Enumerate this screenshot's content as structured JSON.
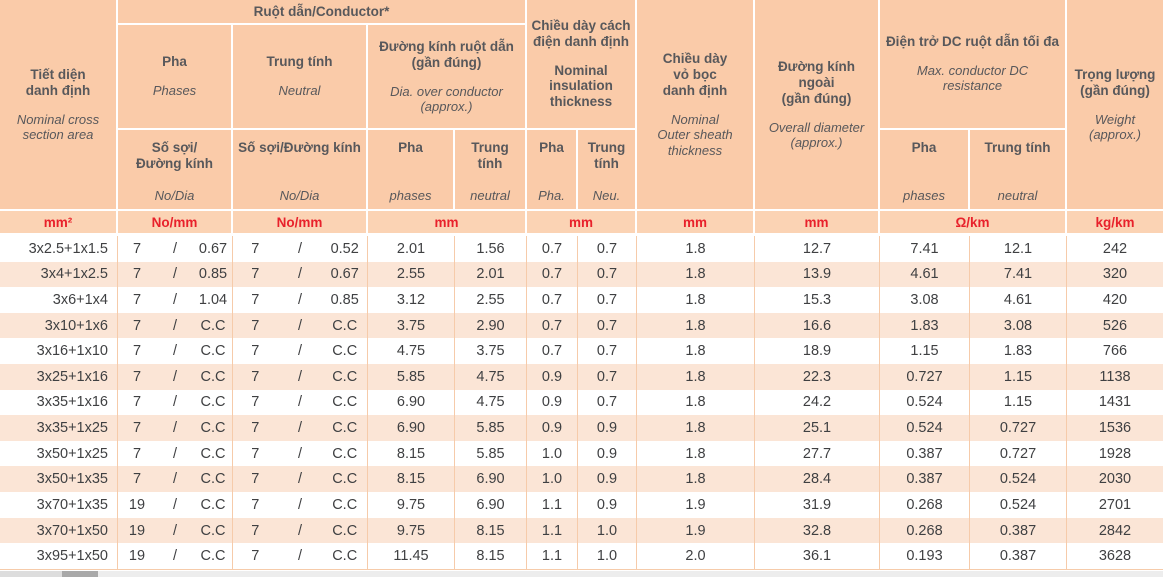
{
  "table": {
    "header": {
      "section": {
        "vi": "Tiết diện\ndanh định",
        "en": "Nominal cross\nsection area"
      },
      "conductor_group": {
        "vi": "Ruột dẫn/Conductor*"
      },
      "pha": {
        "vi": "Pha",
        "en": "Phases"
      },
      "neutral": {
        "vi": "Trung tính",
        "en": "Neutral"
      },
      "pha_nodia": {
        "vi": "Số sợi/\nĐường kính",
        "en": "No/Dia"
      },
      "neutral_nodia": {
        "vi": "Số sợi/Đường kính",
        "en": "No/Dia"
      },
      "dia_group": {
        "vi": "Đường kính ruột dẫn\n(gần đúng)",
        "en": "Dia. over conductor\n(approx.)"
      },
      "dia_pha": {
        "vi": "Pha",
        "en": "phases"
      },
      "dia_neutral": {
        "vi": "Trung\ntính",
        "en": "neutral"
      },
      "insulation": {
        "vi": "Chiều dày cách\nđiện danh định",
        "en": "Nominal\ninsulation\nthickness"
      },
      "ins_pha": {
        "vi": "Pha",
        "en": "Pha."
      },
      "ins_neutral": {
        "vi": "Trung\ntính",
        "en": "Neu."
      },
      "sheath": {
        "vi": "Chiều dày\nvỏ bọc\ndanh định",
        "en": "Nominal\nOuter sheath\nthickness"
      },
      "overall": {
        "vi": "Đường kính\nngoài\n(gần đúng)",
        "en": "Overall diameter\n(approx.)"
      },
      "dc_group": {
        "vi": "Điện trở DC ruột dẫn tối đa",
        "en": "Max. conductor DC\nresistance"
      },
      "dc_pha": {
        "vi": "Pha",
        "en": "phases"
      },
      "dc_neutral": {
        "vi": "Trung tính",
        "en": "neutral"
      },
      "weight": {
        "vi": "Trọng lượng\n(gần đúng)",
        "en": "Weight\n(approx.)"
      }
    },
    "units": {
      "section": "mm²",
      "pha_nodia": "No/mm",
      "neutral_nodia": "No/mm",
      "dia": "mm",
      "insulation": "mm",
      "sheath": "mm",
      "overall": "mm",
      "dc": "Ω/km",
      "weight": "kg/km"
    },
    "separator": "/",
    "rows": [
      [
        "3x2.5+1x1.5",
        "7",
        "0.67",
        "7",
        "0.52",
        "2.01",
        "1.56",
        "0.7",
        "0.7",
        "1.8",
        "12.7",
        "7.41",
        "12.1",
        "242"
      ],
      [
        "3x4+1x2.5",
        "7",
        "0.85",
        "7",
        "0.67",
        "2.55",
        "2.01",
        "0.7",
        "0.7",
        "1.8",
        "13.9",
        "4.61",
        "7.41",
        "320"
      ],
      [
        "3x6+1x4",
        "7",
        "1.04",
        "7",
        "0.85",
        "3.12",
        "2.55",
        "0.7",
        "0.7",
        "1.8",
        "15.3",
        "3.08",
        "4.61",
        "420"
      ],
      [
        "3x10+1x6",
        "7",
        "C.C",
        "7",
        "C.C",
        "3.75",
        "2.90",
        "0.7",
        "0.7",
        "1.8",
        "16.6",
        "1.83",
        "3.08",
        "526"
      ],
      [
        "3x16+1x10",
        "7",
        "C.C",
        "7",
        "C.C",
        "4.75",
        "3.75",
        "0.7",
        "0.7",
        "1.8",
        "18.9",
        "1.15",
        "1.83",
        "766"
      ],
      [
        "3x25+1x16",
        "7",
        "C.C",
        "7",
        "C.C",
        "5.85",
        "4.75",
        "0.9",
        "0.7",
        "1.8",
        "22.3",
        "0.727",
        "1.15",
        "1138"
      ],
      [
        "3x35+1x16",
        "7",
        "C.C",
        "7",
        "C.C",
        "6.90",
        "4.75",
        "0.9",
        "0.7",
        "1.8",
        "24.2",
        "0.524",
        "1.15",
        "1431"
      ],
      [
        "3x35+1x25",
        "7",
        "C.C",
        "7",
        "C.C",
        "6.90",
        "5.85",
        "0.9",
        "0.9",
        "1.8",
        "25.1",
        "0.524",
        "0.727",
        "1536"
      ],
      [
        "3x50+1x25",
        "7",
        "C.C",
        "7",
        "C.C",
        "8.15",
        "5.85",
        "1.0",
        "0.9",
        "1.8",
        "27.7",
        "0.387",
        "0.727",
        "1928"
      ],
      [
        "3x50+1x35",
        "7",
        "C.C",
        "7",
        "C.C",
        "8.15",
        "6.90",
        "1.0",
        "0.9",
        "1.8",
        "28.4",
        "0.387",
        "0.524",
        "2030"
      ],
      [
        "3x70+1x35",
        "19",
        "C.C",
        "7",
        "C.C",
        "9.75",
        "6.90",
        "1.1",
        "0.9",
        "1.9",
        "31.9",
        "0.268",
        "0.524",
        "2701"
      ],
      [
        "3x70+1x50",
        "19",
        "C.C",
        "7",
        "C.C",
        "9.75",
        "8.15",
        "1.1",
        "1.0",
        "1.9",
        "32.8",
        "0.268",
        "0.387",
        "2842"
      ],
      [
        "3x95+1x50",
        "19",
        "C.C",
        "7",
        "C.C",
        "11.45",
        "8.15",
        "1.1",
        "1.0",
        "2.0",
        "36.1",
        "0.193",
        "0.387",
        "3628"
      ]
    ]
  },
  "colors": {
    "header_bg": "#FACBA9",
    "units_bg": "#FBD3B4",
    "stripe_bg": "#FBE5D6",
    "grid_line": "#F6CBAA",
    "header_text": "#58585B",
    "data_text": "#3F4042",
    "units_text": "#E8212B"
  }
}
